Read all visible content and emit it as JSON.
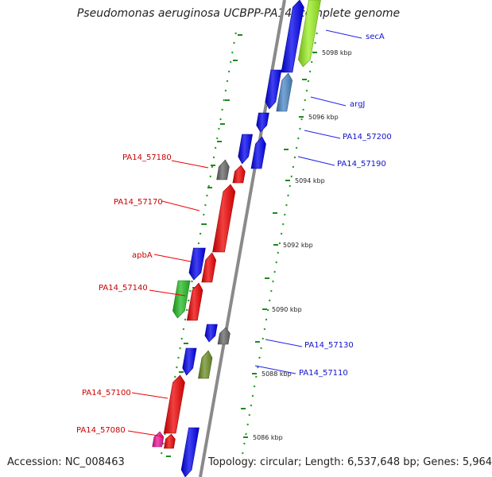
{
  "title": "Pseudomonas aeruginosa UCBPP-PA14, complete genome",
  "footer": {
    "accession": "Accession: NC_008463",
    "summary": "Topology: circular; Length: 6,537,648 bp; Genes: 5,964"
  },
  "colors": {
    "backbone": "#8a8a8a",
    "tick": "#1e8a1e",
    "dot": "#2aa02a",
    "label_left": "#cc0000",
    "label_right": "#1111cc",
    "leader_left": "#ee0000",
    "leader_right": "#2222ee"
  },
  "ticks": [
    {
      "label": "5098 kbp"
    },
    {
      "label": "5096 kbp"
    },
    {
      "label": "5094 kbp"
    },
    {
      "label": "5092 kbp"
    },
    {
      "label": "5090 kbp"
    },
    {
      "label": "5088 kbp"
    },
    {
      "label": "5086 kbp"
    }
  ],
  "gene_labels": [
    {
      "text": "secA",
      "side": "right"
    },
    {
      "text": "argJ",
      "side": "right"
    },
    {
      "text": "PA14_57200",
      "side": "right"
    },
    {
      "text": "PA14_57190",
      "side": "right"
    },
    {
      "text": "PA14_57180",
      "side": "left"
    },
    {
      "text": "PA14_57170",
      "side": "left"
    },
    {
      "text": "apbA",
      "side": "left"
    },
    {
      "text": "PA14_57140",
      "side": "left"
    },
    {
      "text": "PA14_57130",
      "side": "right"
    },
    {
      "text": "PA14_57110",
      "side": "right"
    },
    {
      "text": "PA14_57100",
      "side": "left"
    },
    {
      "text": "PA14_57080",
      "side": "left"
    }
  ],
  "features": [
    {
      "color": "#0000ee"
    },
    {
      "color": "#99ee22"
    },
    {
      "color": "#0000ee"
    },
    {
      "color": "#4a86c4"
    },
    {
      "color": "#0000ee"
    },
    {
      "color": "#0000ee"
    },
    {
      "color": "#0000ee"
    },
    {
      "color": "#666666"
    },
    {
      "color": "#ee0000"
    },
    {
      "color": "#ee0000"
    },
    {
      "color": "#0000ee"
    },
    {
      "color": "#ee0000"
    },
    {
      "color": "#22bb22"
    },
    {
      "color": "#ee0000"
    },
    {
      "color": "#0000ee"
    },
    {
      "color": "#666666"
    },
    {
      "color": "#0000ee"
    },
    {
      "color": "#6b8e23"
    },
    {
      "color": "#ee0000"
    },
    {
      "color": "#ee1199"
    },
    {
      "color": "#ee0000"
    },
    {
      "color": "#0000ee"
    }
  ]
}
